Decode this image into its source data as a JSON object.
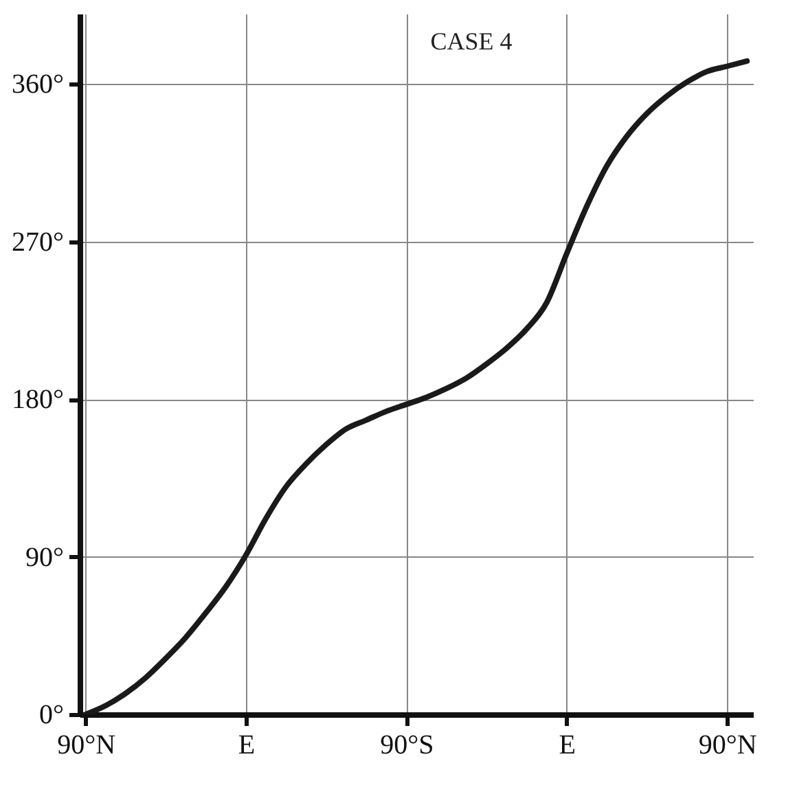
{
  "chart_data": {
    "type": "line",
    "title": "CASE 4",
    "categories": [
      "90°N",
      null,
      null,
      null,
      null,
      null,
      null,
      null,
      "E",
      null,
      null,
      null,
      null,
      null,
      null,
      null,
      "90°S",
      null,
      null,
      null,
      null,
      null,
      null,
      null,
      "E",
      null,
      null,
      null,
      null,
      null,
      null,
      null,
      "90°N",
      null
    ],
    "ylim": [
      0,
      400
    ],
    "yticks": [
      {
        "value": 0,
        "label": "0°"
      },
      {
        "value": 90,
        "label": "90°"
      },
      {
        "value": 180,
        "label": "180°"
      },
      {
        "value": 270,
        "label": "270°"
      },
      {
        "value": 360,
        "label": "360°"
      }
    ],
    "grid": true,
    "marker": "none",
    "line_style": "solid",
    "series": [
      {
        "color": "#1a1a1a",
        "values": [
          0,
          5,
          12,
          21,
          32,
          44,
          58,
          73,
          91,
          112,
          130,
          143,
          154,
          163,
          168,
          173,
          177,
          181,
          186,
          192,
          200,
          209,
          220,
          235,
          263,
          290,
          313,
          330,
          343,
          353,
          361,
          367,
          370,
          373
        ]
      }
    ]
  }
}
